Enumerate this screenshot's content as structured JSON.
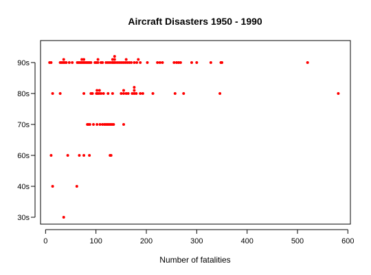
{
  "chart_data": {
    "type": "scatter",
    "title": "Aircraft Disasters 1950 - 1990",
    "xlabel": "Number of fatalities",
    "ylabel": "",
    "xlim": [
      -10,
      605
    ],
    "xticks": [
      0,
      100,
      200,
      300,
      400,
      500,
      600
    ],
    "categories": [
      "30s",
      "40s",
      "60s",
      "70s",
      "80s",
      "90s"
    ],
    "point_color": "#ff0000",
    "grid": false,
    "points": [
      {
        "x": 36,
        "y": "30s"
      },
      {
        "x": 14,
        "y": "40s"
      },
      {
        "x": 62,
        "y": "40s"
      },
      {
        "x": 11,
        "y": "60s"
      },
      {
        "x": 44,
        "y": "60s"
      },
      {
        "x": 67,
        "y": "60s"
      },
      {
        "x": 76,
        "y": "60s"
      },
      {
        "x": 87,
        "y": "60s"
      },
      {
        "x": 128,
        "y": "60s"
      },
      {
        "x": 130,
        "y": "60s"
      },
      {
        "x": 83,
        "y": "70s"
      },
      {
        "x": 85,
        "y": "70s"
      },
      {
        "x": 88,
        "y": "70s"
      },
      {
        "x": 95,
        "y": "70s"
      },
      {
        "x": 102,
        "y": "70s"
      },
      {
        "x": 108,
        "y": "70s"
      },
      {
        "x": 113,
        "y": "70s"
      },
      {
        "x": 117,
        "y": "70s"
      },
      {
        "x": 120,
        "y": "70s"
      },
      {
        "x": 123,
        "y": "70s"
      },
      {
        "x": 126,
        "y": "70s"
      },
      {
        "x": 129,
        "y": "70s"
      },
      {
        "x": 132,
        "y": "70s"
      },
      {
        "x": 135,
        "y": "70s"
      },
      {
        "x": 155,
        "y": "70s"
      },
      {
        "x": 14,
        "y": "80s"
      },
      {
        "x": 29,
        "y": "80s"
      },
      {
        "x": 76,
        "y": "80s"
      },
      {
        "x": 90,
        "y": "80s"
      },
      {
        "x": 93,
        "y": "80s"
      },
      {
        "x": 101,
        "y": "80s"
      },
      {
        "x": 103,
        "y": "80s"
      },
      {
        "x": 106,
        "y": "80s"
      },
      {
        "x": 110,
        "y": "80s"
      },
      {
        "x": 115,
        "y": "80s"
      },
      {
        "x": 124,
        "y": "80s"
      },
      {
        "x": 133,
        "y": "80s"
      },
      {
        "x": 150,
        "y": "80s"
      },
      {
        "x": 155,
        "y": "80s"
      },
      {
        "x": 160,
        "y": "80s"
      },
      {
        "x": 164,
        "y": "80s"
      },
      {
        "x": 172,
        "y": "80s"
      },
      {
        "x": 176,
        "y": "80s"
      },
      {
        "x": 180,
        "y": "80s"
      },
      {
        "x": 188,
        "y": "80s"
      },
      {
        "x": 193,
        "y": "80s"
      },
      {
        "x": 213,
        "y": "80s"
      },
      {
        "x": 257,
        "y": "80s"
      },
      {
        "x": 274,
        "y": "80s"
      },
      {
        "x": 346,
        "y": "80s"
      },
      {
        "x": 581,
        "y": "80s"
      },
      {
        "x": 102,
        "y": "80s",
        "jit": 1
      },
      {
        "x": 107,
        "y": "80s",
        "jit": 1
      },
      {
        "x": 155,
        "y": "80s",
        "jit": 1
      },
      {
        "x": 176,
        "y": "80s",
        "jit": 1
      },
      {
        "x": 176,
        "y": "80s",
        "jit": 2
      },
      {
        "x": 8,
        "y": "90s"
      },
      {
        "x": 11,
        "y": "90s"
      },
      {
        "x": 29,
        "y": "90s"
      },
      {
        "x": 32,
        "y": "90s"
      },
      {
        "x": 35,
        "y": "90s"
      },
      {
        "x": 38,
        "y": "90s"
      },
      {
        "x": 41,
        "y": "90s"
      },
      {
        "x": 47,
        "y": "90s"
      },
      {
        "x": 53,
        "y": "90s"
      },
      {
        "x": 63,
        "y": "90s"
      },
      {
        "x": 66,
        "y": "90s"
      },
      {
        "x": 69,
        "y": "90s"
      },
      {
        "x": 72,
        "y": "90s"
      },
      {
        "x": 75,
        "y": "90s"
      },
      {
        "x": 78,
        "y": "90s"
      },
      {
        "x": 81,
        "y": "90s"
      },
      {
        "x": 84,
        "y": "90s"
      },
      {
        "x": 87,
        "y": "90s"
      },
      {
        "x": 90,
        "y": "90s"
      },
      {
        "x": 98,
        "y": "90s"
      },
      {
        "x": 101,
        "y": "90s"
      },
      {
        "x": 104,
        "y": "90s"
      },
      {
        "x": 110,
        "y": "90s"
      },
      {
        "x": 113,
        "y": "90s"
      },
      {
        "x": 120,
        "y": "90s"
      },
      {
        "x": 124,
        "y": "90s"
      },
      {
        "x": 128,
        "y": "90s"
      },
      {
        "x": 132,
        "y": "90s"
      },
      {
        "x": 135,
        "y": "90s"
      },
      {
        "x": 138,
        "y": "90s"
      },
      {
        "x": 142,
        "y": "90s"
      },
      {
        "x": 146,
        "y": "90s"
      },
      {
        "x": 150,
        "y": "90s"
      },
      {
        "x": 154,
        "y": "90s"
      },
      {
        "x": 158,
        "y": "90s"
      },
      {
        "x": 162,
        "y": "90s"
      },
      {
        "x": 166,
        "y": "90s"
      },
      {
        "x": 170,
        "y": "90s"
      },
      {
        "x": 176,
        "y": "90s"
      },
      {
        "x": 181,
        "y": "90s"
      },
      {
        "x": 188,
        "y": "90s"
      },
      {
        "x": 202,
        "y": "90s"
      },
      {
        "x": 222,
        "y": "90s"
      },
      {
        "x": 227,
        "y": "90s"
      },
      {
        "x": 232,
        "y": "90s"
      },
      {
        "x": 255,
        "y": "90s"
      },
      {
        "x": 260,
        "y": "90s"
      },
      {
        "x": 264,
        "y": "90s"
      },
      {
        "x": 268,
        "y": "90s"
      },
      {
        "x": 290,
        "y": "90s"
      },
      {
        "x": 300,
        "y": "90s"
      },
      {
        "x": 328,
        "y": "90s"
      },
      {
        "x": 348,
        "y": "90s"
      },
      {
        "x": 350,
        "y": "90s"
      },
      {
        "x": 520,
        "y": "90s"
      },
      {
        "x": 36,
        "y": "90s",
        "jit": 1
      },
      {
        "x": 72,
        "y": "90s",
        "jit": 1
      },
      {
        "x": 76,
        "y": "90s",
        "jit": 1
      },
      {
        "x": 104,
        "y": "90s",
        "jit": 1
      },
      {
        "x": 133,
        "y": "90s",
        "jit": 1
      },
      {
        "x": 137,
        "y": "90s",
        "jit": 1
      },
      {
        "x": 160,
        "y": "90s",
        "jit": 1
      },
      {
        "x": 184,
        "y": "90s",
        "jit": 1
      },
      {
        "x": 137,
        "y": "90s",
        "jit": 2
      }
    ]
  }
}
